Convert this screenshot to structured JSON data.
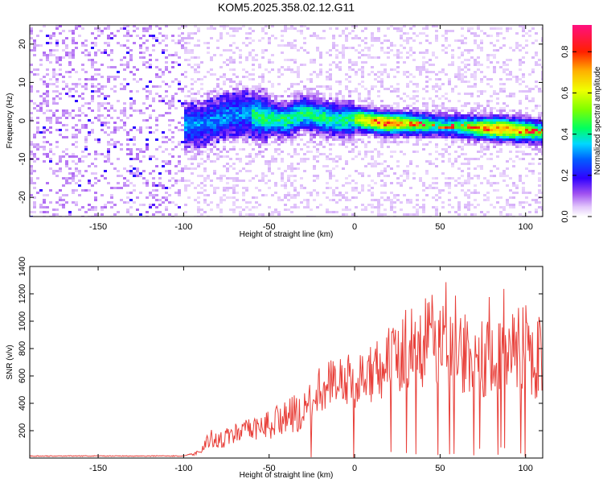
{
  "chart_data": [
    {
      "type": "heatmap",
      "title": "KOM5.2025.358.02.12.G11",
      "xlabel": "Height of straight line (km)",
      "ylabel": "Frequency (Hz)",
      "xlim": [
        -190,
        110
      ],
      "ylim": [
        -25,
        25
      ],
      "xticks": [
        -150,
        -100,
        -50,
        0,
        50,
        100
      ],
      "yticks": [
        -20,
        -10,
        0,
        10,
        20
      ],
      "colorbar": {
        "label": "Normalized spectral amplitude",
        "range": [
          0,
          0.93
        ],
        "ticks": [
          0.0,
          0.2,
          0.4,
          0.6,
          0.8
        ]
      },
      "ridge": {
        "description": "signal ridge frequency vs height",
        "x": [
          -110,
          -90,
          -75,
          -65,
          -55,
          -40,
          -30,
          -20,
          -10,
          0,
          15,
          30,
          50,
          70,
          90,
          110
        ],
        "y": [
          -2,
          -1,
          1,
          2,
          1,
          0,
          2,
          1,
          0,
          0.5,
          -0.5,
          -0.8,
          -1.2,
          -1.8,
          -2.3,
          -3
        ]
      }
    },
    {
      "type": "line",
      "xlabel": "Height of straight line (km)",
      "ylabel": "SNR (v/v)",
      "xlim": [
        -190,
        110
      ],
      "ylim": [
        0,
        1400
      ],
      "xticks": [
        -150,
        -100,
        -50,
        0,
        50,
        100
      ],
      "yticks": [
        200,
        400,
        600,
        800,
        1000,
        1200,
        1400
      ],
      "series": [
        {
          "name": "SNR",
          "color": "#e8403a",
          "x": [
            -190,
            -150,
            -100,
            -90,
            -85,
            -80,
            -70,
            -60,
            -50,
            -40,
            -30,
            -25,
            -20,
            -10,
            0,
            10,
            20,
            25,
            30,
            40,
            45,
            50,
            60,
            70,
            80,
            90,
            95,
            100,
            105,
            110
          ],
          "y": [
            15,
            15,
            15,
            50,
            150,
            120,
            180,
            200,
            250,
            300,
            340,
            420,
            520,
            580,
            560,
            620,
            680,
            720,
            800,
            820,
            870,
            800,
            780,
            740,
            720,
            730,
            780,
            820,
            700,
            800
          ]
        }
      ]
    }
  ],
  "colors": {
    "line": "#e8403a",
    "frame": "#000000",
    "lowest": "#d9b8f5"
  }
}
